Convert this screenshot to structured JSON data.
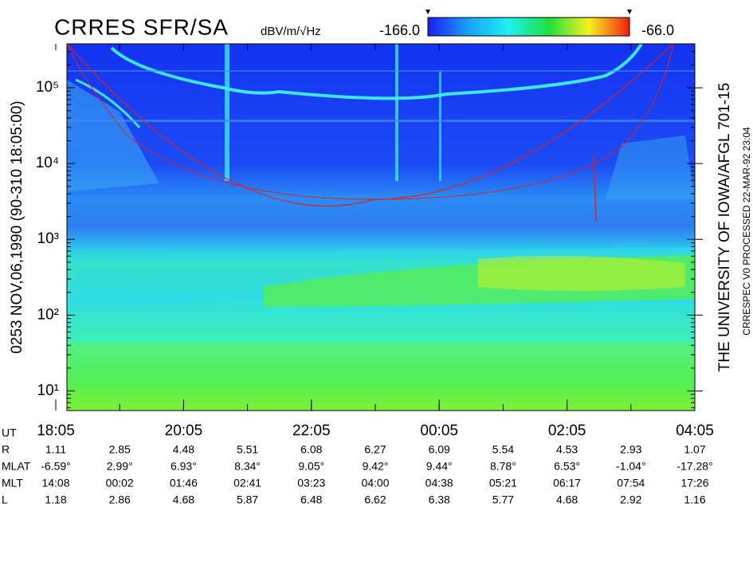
{
  "chart_data": {
    "type": "spectrogram",
    "title": "CRRES SFR/SA",
    "colorbar": {
      "label": "dBV/m/√Hz",
      "min": {
        "value": -166,
        "label": "-166.0"
      },
      "max": {
        "value": -66,
        "label": "-66.0"
      }
    },
    "left_text": "0253   NOV,06,1990  (90-310 18:05:00)",
    "right_text": "THE UNIVERSITY OF IOWA/AFGL 701-15",
    "right_small_text": "CRRESPEC V0     PROCESSED 22-MAR-92  23:04",
    "log_y": true,
    "ylim": [
      5.5,
      380000
    ],
    "yticks": [
      {
        "value": 10,
        "label": "10¹"
      },
      {
        "value": 100,
        "label": "10²"
      },
      {
        "value": 1000,
        "label": "10³"
      },
      {
        "value": 10000,
        "label": "10⁴"
      },
      {
        "value": 100000,
        "label": "10⁵"
      }
    ],
    "xticks": [
      "18:05",
      "20:05",
      "22:05",
      "00:05",
      "02:05",
      "04:05"
    ],
    "ephemeris": [
      {
        "label": "UT"
      },
      {
        "label": "R",
        "values": [
          1.11,
          2.85,
          4.48,
          5.51,
          6.08,
          6.27,
          6.09,
          5.54,
          4.53,
          2.93,
          1.07
        ]
      },
      {
        "label": "MLAT",
        "values": [
          "-6.59°",
          "2.99°",
          "6.93°",
          "8.34°",
          "9.05°",
          "9.42°",
          "9.44°",
          "8.78°",
          "6.53°",
          "-1.04°",
          "-17.28°"
        ]
      },
      {
        "label": "MLT",
        "values": [
          "14:08",
          "00:02",
          "01:46",
          "02:41",
          "03:23",
          "04:00",
          "04:38",
          "05:21",
          "06:17",
          "07:54",
          "17:26"
        ]
      },
      {
        "label": "L",
        "values": [
          1.18,
          2.86,
          4.68,
          5.87,
          6.48,
          6.62,
          6.38,
          5.77,
          4.68,
          2.92,
          1.16
        ]
      }
    ]
  }
}
